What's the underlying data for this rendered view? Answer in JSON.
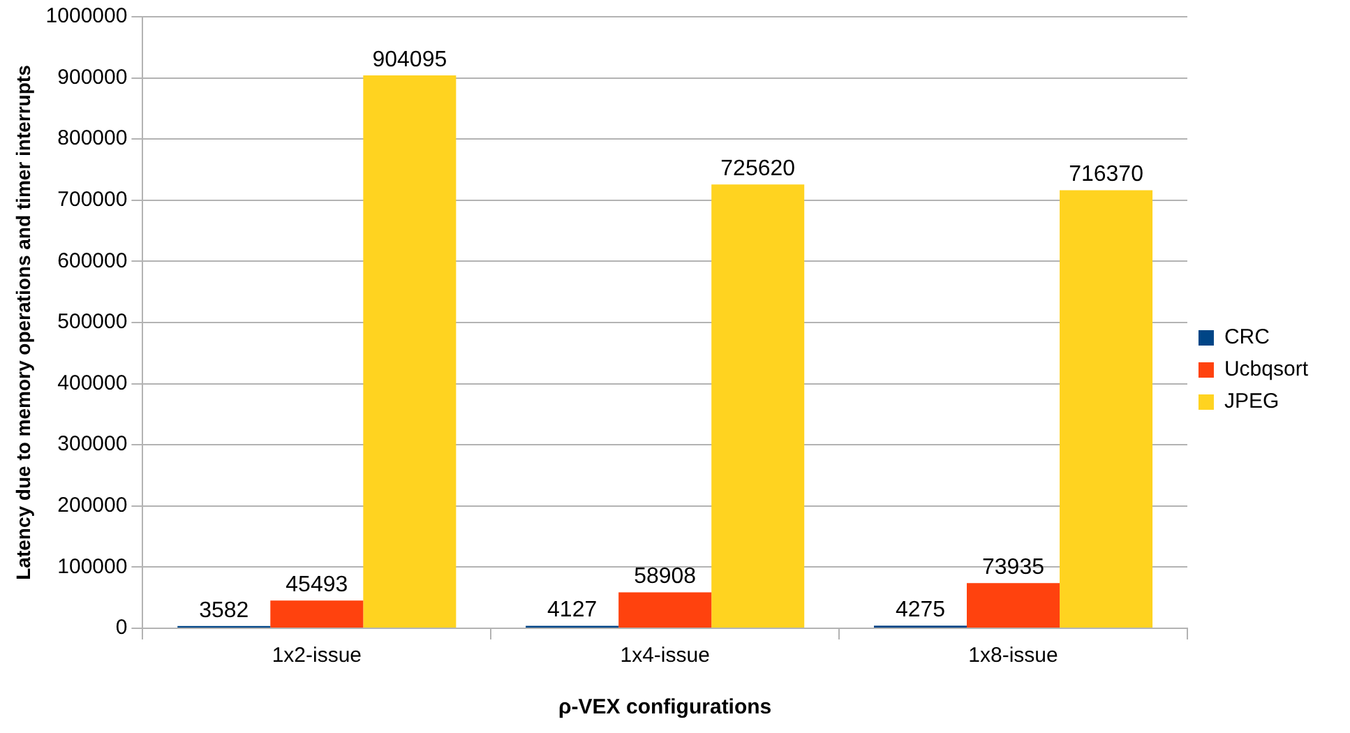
{
  "chart_data": {
    "type": "bar",
    "xlabel": "ρ-VEX configurations",
    "ylabel": "Latency due to memory operations and timer interrupts",
    "categories": [
      "1x2-issue",
      "1x4-issue",
      "1x8-issue"
    ],
    "series": [
      {
        "name": "CRC",
        "color": "#004586",
        "values": [
          3582,
          4127,
          4275
        ]
      },
      {
        "name": "Ucbqsort",
        "color": "#ff420e",
        "values": [
          45493,
          58908,
          73935
        ]
      },
      {
        "name": "JPEG",
        "color": "#ffd320",
        "values": [
          904095,
          725620,
          716370
        ]
      }
    ],
    "ylim": [
      0,
      1000000
    ],
    "yticks": [
      0,
      100000,
      200000,
      300000,
      400000,
      500000,
      600000,
      700000,
      800000,
      900000,
      1000000
    ],
    "grid": "y",
    "legend": "right",
    "data_labels": true
  }
}
